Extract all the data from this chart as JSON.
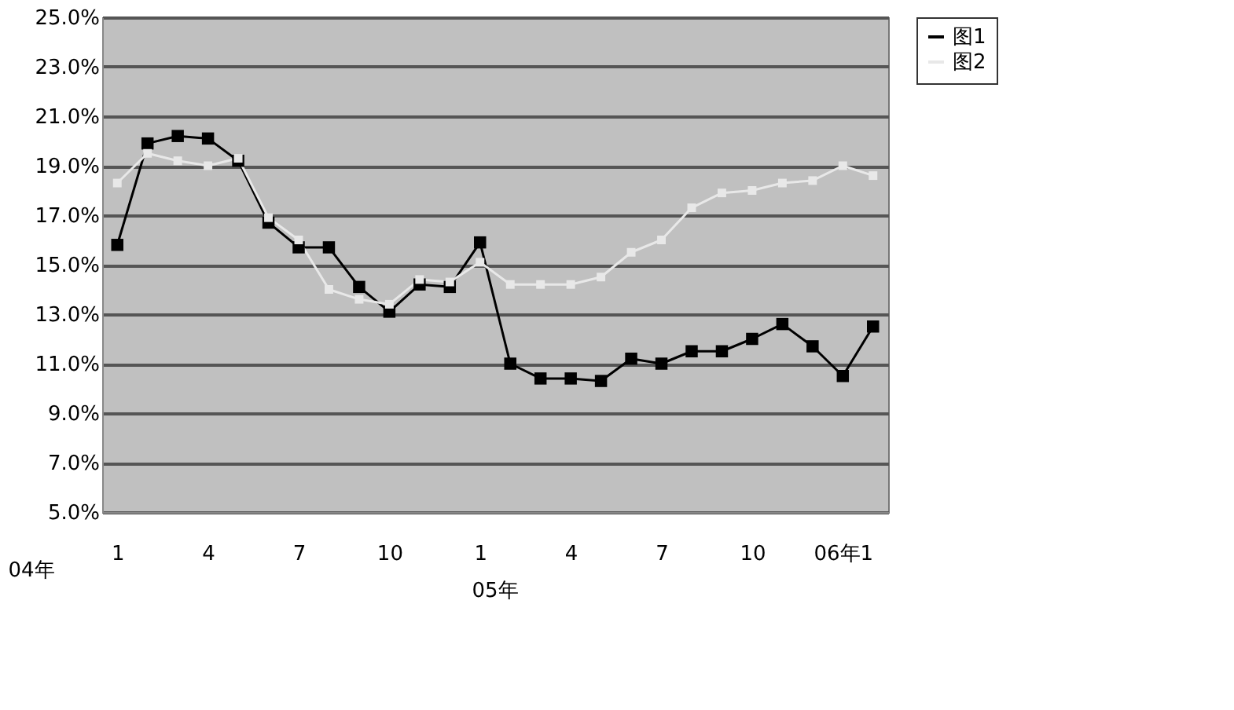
{
  "chart_data": {
    "type": "line",
    "categories": [
      "1",
      null,
      null,
      "4",
      null,
      null,
      "7",
      null,
      null,
      "10",
      null,
      null,
      "1",
      null,
      null,
      "4",
      null,
      null,
      "7",
      null,
      null,
      "10",
      null,
      null,
      "06年1",
      null
    ],
    "series": [
      {
        "name": "图1",
        "color": "#000000",
        "values": [
          15.8,
          19.9,
          20.2,
          20.1,
          19.2,
          16.7,
          15.7,
          15.7,
          14.1,
          13.1,
          14.2,
          14.1,
          15.9,
          11.0,
          10.4,
          10.4,
          10.3,
          11.2,
          11.0,
          11.5,
          11.5,
          12.0,
          12.6,
          11.7,
          10.5,
          12.5
        ]
      },
      {
        "name": "图2",
        "color": "#e8e8e8",
        "values": [
          18.3,
          19.5,
          19.2,
          19.0,
          19.3,
          16.9,
          16.0,
          14.0,
          13.6,
          13.4,
          14.4,
          14.3,
          15.1,
          14.2,
          14.2,
          14.2,
          14.5,
          15.5,
          16.0,
          17.3,
          17.9,
          18.0,
          18.3,
          18.4,
          19.0,
          18.6
        ]
      }
    ],
    "ylim": [
      5,
      25
    ],
    "yticks": [
      {
        "value": 5,
        "label": "5.0%"
      },
      {
        "value": 7,
        "label": "7.0%"
      },
      {
        "value": 9,
        "label": "9.0%"
      },
      {
        "value": 11,
        "label": "11.0%"
      },
      {
        "value": 13,
        "label": "13.0%"
      },
      {
        "value": 15,
        "label": "15.0%"
      },
      {
        "value": 17,
        "label": "17.0%"
      },
      {
        "value": 19,
        "label": "19.0%"
      },
      {
        "value": 21,
        "label": "21.0%"
      },
      {
        "value": 23,
        "label": "23.0%"
      },
      {
        "value": 25,
        "label": "25.0%"
      }
    ],
    "annotations": [
      "04年",
      "05年"
    ],
    "grid": "y",
    "legend": "right",
    "marker": "square",
    "line_style": "solid"
  }
}
